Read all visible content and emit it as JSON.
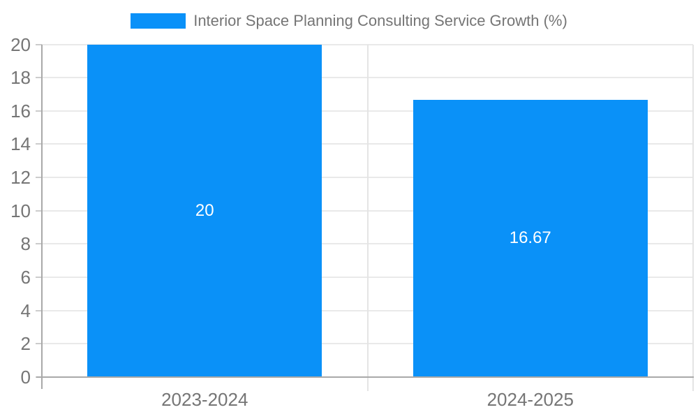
{
  "chart_data": {
    "type": "bar",
    "title": "Interior Space Planning Consulting Service Growth (%)",
    "categories": [
      "2023-2024",
      "2024-2025"
    ],
    "series": [
      {
        "name": "Interior Space Planning Consulting Service Growth (%)",
        "values": [
          20,
          16.67
        ],
        "value_labels": [
          "20",
          "16.67"
        ]
      }
    ],
    "xlabel": "",
    "ylabel": "",
    "ylim": [
      0,
      20
    ],
    "ytick_step": 2,
    "ytick_labels": [
      "0",
      "2",
      "4",
      "6",
      "8",
      "10",
      "12",
      "14",
      "16",
      "18",
      "20"
    ],
    "grid": "on",
    "legend_position": "top-center",
    "colors": {
      "bar": "#0a91f8",
      "bar_value_label": "#ffffff",
      "axis_line": "#a9a9a9",
      "grid_line": "#e9e9e9",
      "tick_text": "#757575",
      "legend_text": "#757575",
      "background": "#ffffff"
    }
  }
}
